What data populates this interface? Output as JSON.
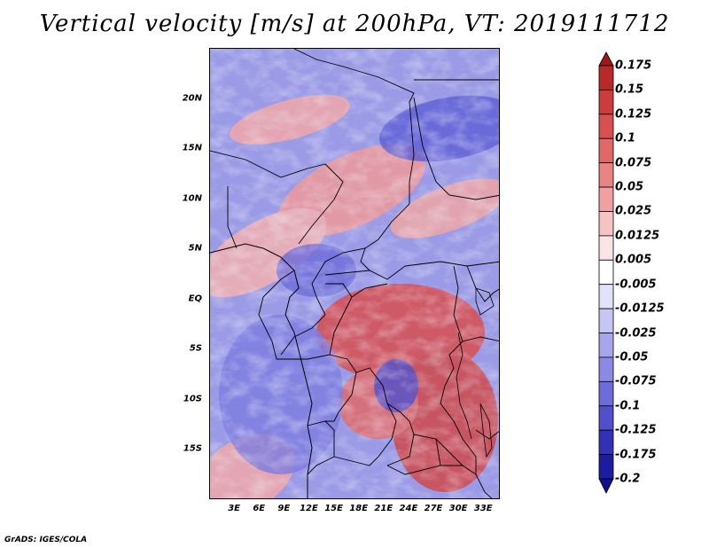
{
  "title": "Vertical velocity [m/s] at 200hPa, VT: 2019111712",
  "footer": "GrADS: IGES/COLA",
  "map": {
    "lon_range": [
      0,
      35
    ],
    "lat_range": [
      -20,
      25
    ],
    "lat_labels": [
      {
        "lat": 20,
        "text": "20N"
      },
      {
        "lat": 15,
        "text": "15N"
      },
      {
        "lat": 10,
        "text": "10N"
      },
      {
        "lat": 5,
        "text": "5N"
      },
      {
        "lat": 0,
        "text": "EQ"
      },
      {
        "lat": -5,
        "text": "5S"
      },
      {
        "lat": -10,
        "text": "10S"
      },
      {
        "lat": -15,
        "text": "15S"
      }
    ],
    "lon_labels": [
      {
        "lon": 3,
        "text": "3E"
      },
      {
        "lon": 6,
        "text": "6E"
      },
      {
        "lon": 9,
        "text": "9E"
      },
      {
        "lon": 12,
        "text": "12E"
      },
      {
        "lon": 15,
        "text": "15E"
      },
      {
        "lon": 18,
        "text": "18E"
      },
      {
        "lon": 21,
        "text": "21E"
      },
      {
        "lon": 24,
        "text": "24E"
      },
      {
        "lon": 27,
        "text": "27E"
      },
      {
        "lon": 30,
        "text": "30E"
      },
      {
        "lon": 33,
        "text": "33E"
      }
    ]
  },
  "colorbar": {
    "labels": [
      "0.175",
      "0.15",
      "0.125",
      "0.1",
      "0.075",
      "0.05",
      "0.025",
      "0.0125",
      "0.005",
      "-0.005",
      "-0.0125",
      "-0.025",
      "-0.05",
      "-0.075",
      "-0.1",
      "-0.125",
      "-0.175",
      "-0.2"
    ],
    "colors": [
      "#a01818",
      "#b82a2a",
      "#cc3c3c",
      "#d85050",
      "#e26868",
      "#ea8484",
      "#f0a0a0",
      "#f6c4c4",
      "#fbe4e4",
      "#ffffff",
      "#e2e2fb",
      "#c6c6f5",
      "#a6a6ee",
      "#8a8ae4",
      "#6c6cda",
      "#5050cc",
      "#3232b8",
      "#1c1ca2",
      "#10108c"
    ]
  }
}
